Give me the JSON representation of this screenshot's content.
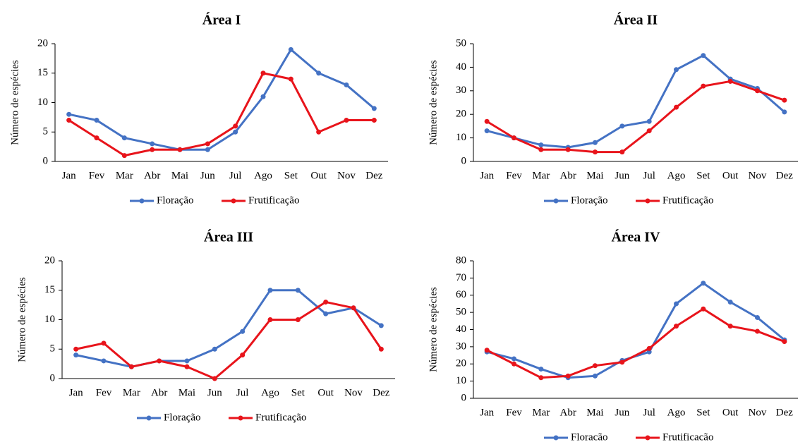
{
  "chart_data": [
    {
      "type": "line",
      "title": "Área I",
      "y_label": "Número de espécies",
      "categories": [
        "Jan",
        "Fev",
        "Mar",
        "Abr",
        "Mai",
        "Jun",
        "Jul",
        "Ago",
        "Set",
        "Out",
        "Nov",
        "Dez"
      ],
      "series": [
        {
          "name": "Floração",
          "color": "#4472c4",
          "values": [
            8,
            7,
            4,
            3,
            2,
            2,
            5,
            11,
            19,
            15,
            13,
            9
          ]
        },
        {
          "name": "Frutificação",
          "color": "#e8141b",
          "values": [
            7,
            4,
            1,
            2,
            2,
            3,
            6,
            15,
            14,
            5,
            7,
            7
          ]
        }
      ],
      "ylim": [
        0,
        20
      ],
      "yticks": [
        0,
        5,
        10,
        15,
        20
      ]
    },
    {
      "type": "line",
      "title": "Área II",
      "y_label": "Número de espécies",
      "categories": [
        "Jan",
        "Fev",
        "Mar",
        "Abr",
        "Mai",
        "Jun",
        "Jul",
        "Ago",
        "Set",
        "Out",
        "Nov",
        "Dez"
      ],
      "series": [
        {
          "name": "Floração",
          "color": "#4472c4",
          "values": [
            13,
            10,
            7,
            6,
            8,
            15,
            17,
            39,
            45,
            35,
            31,
            21
          ]
        },
        {
          "name": "Frutificação",
          "color": "#e8141b",
          "values": [
            17,
            10,
            5,
            5,
            4,
            4,
            13,
            23,
            32,
            34,
            30,
            26
          ]
        }
      ],
      "ylim": [
        0,
        50
      ],
      "yticks": [
        0,
        10,
        20,
        30,
        40,
        50
      ]
    },
    {
      "type": "line",
      "title": "Área III",
      "y_label": "Número de espécies",
      "categories": [
        "Jan",
        "Fev",
        "Mar",
        "Abr",
        "Mai",
        "Jun",
        "Jul",
        "Ago",
        "Set",
        "Out",
        "Nov",
        "Dez"
      ],
      "series": [
        {
          "name": "Floração",
          "color": "#4472c4",
          "values": [
            4,
            3,
            2,
            3,
            3,
            5,
            8,
            15,
            15,
            11,
            12,
            9
          ]
        },
        {
          "name": "Frutificação",
          "color": "#e8141b",
          "values": [
            5,
            6,
            2,
            3,
            2,
            0,
            4,
            10,
            10,
            13,
            12,
            5
          ]
        }
      ],
      "ylim": [
        0,
        20
      ],
      "yticks": [
        0,
        5,
        10,
        15,
        20
      ]
    },
    {
      "type": "line",
      "title": "Área IV",
      "y_label": "Número de espécies",
      "categories": [
        "Jan",
        "Fev",
        "Mar",
        "Abr",
        "Mai",
        "Jun",
        "Jul",
        "Ago",
        "Set",
        "Out",
        "Nov",
        "Dez"
      ],
      "series": [
        {
          "name": "Floracão",
          "color": "#4472c4",
          "values": [
            27,
            23,
            17,
            12,
            13,
            22,
            27,
            55,
            67,
            56,
            47,
            34
          ]
        },
        {
          "name": "Frutificacão",
          "color": "#e8141b",
          "values": [
            28,
            20,
            12,
            13,
            19,
            21,
            29,
            42,
            52,
            42,
            39,
            33
          ]
        }
      ],
      "ylim": [
        0,
        80
      ],
      "yticks": [
        0,
        10,
        20,
        30,
        40,
        50,
        60,
        70,
        80
      ]
    }
  ]
}
